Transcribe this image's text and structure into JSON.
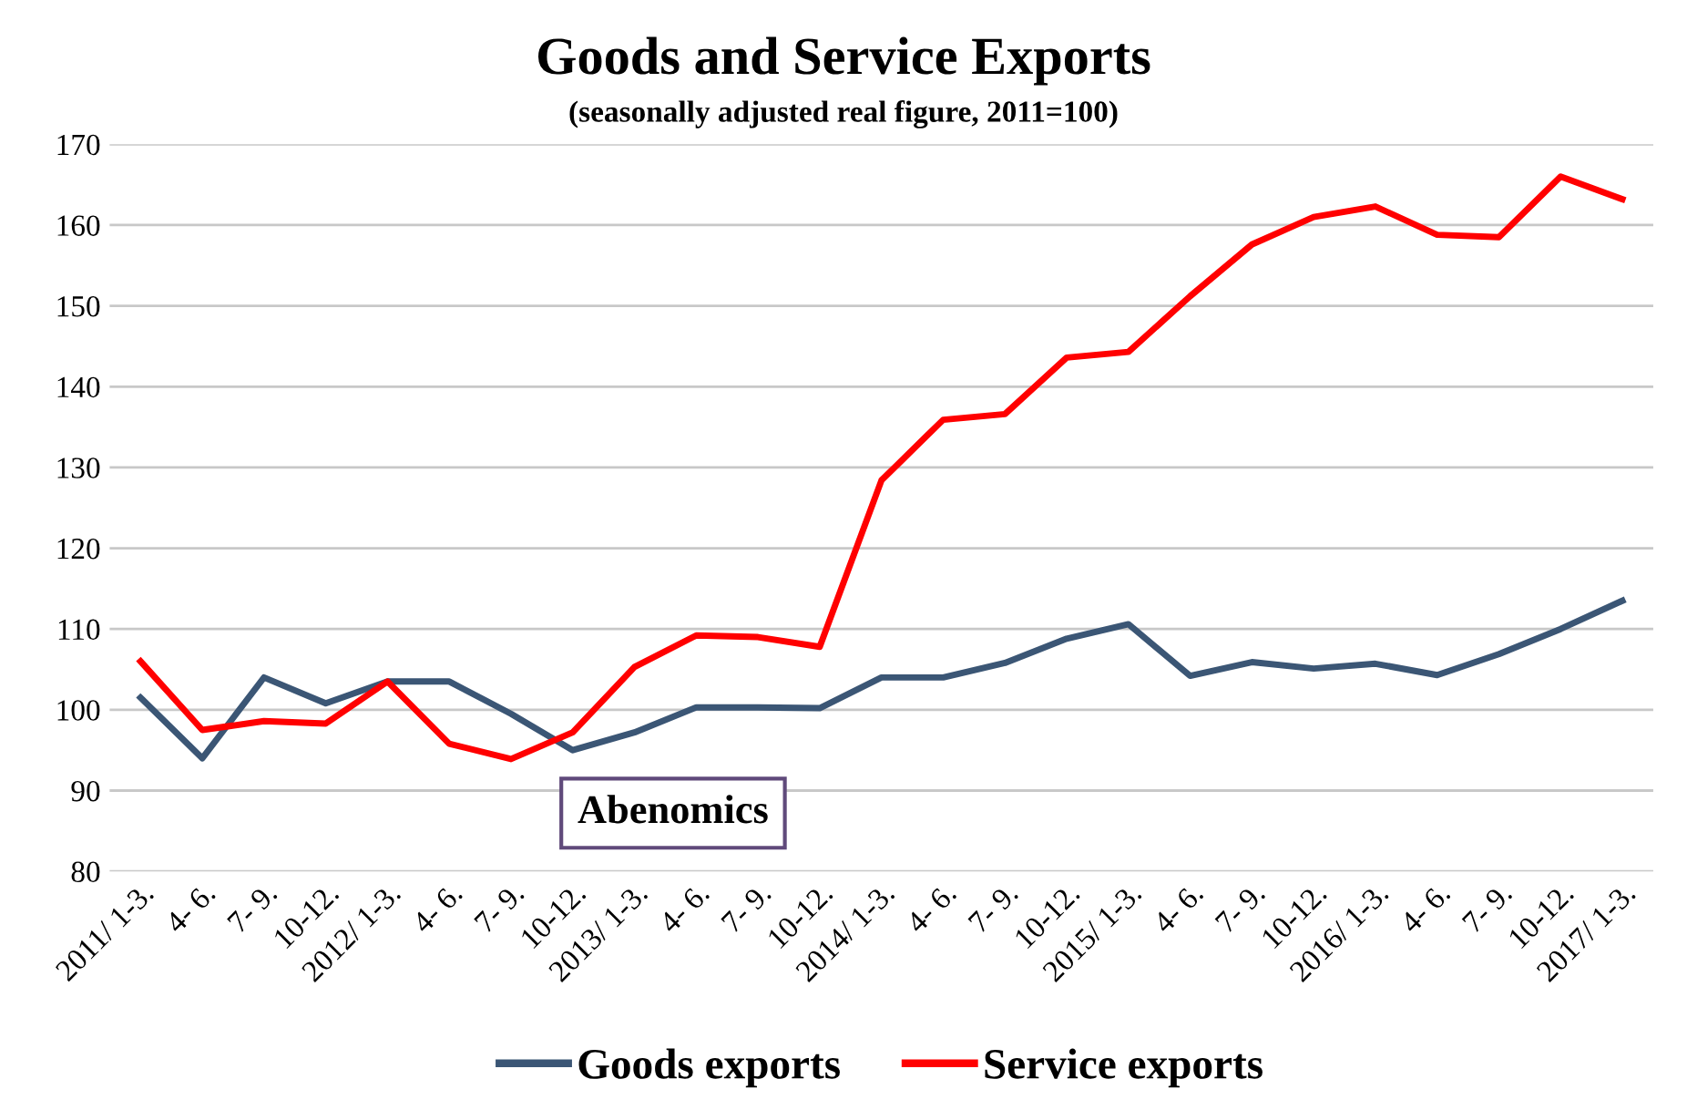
{
  "chart_data": {
    "type": "line",
    "title": "Goods and Service Exports",
    "subtitle": "(seasonally adjusted real figure, 2011=100)",
    "categories": [
      "2011/ 1-3.",
      "4- 6.",
      "7- 9.",
      "10-12.",
      "2012/ 1-3.",
      "4- 6.",
      "7- 9.",
      "10-12.",
      "2013/ 1-3.",
      "4- 6.",
      "7- 9.",
      "10-12.",
      "2014/ 1-3.",
      "4- 6.",
      "7- 9.",
      "10-12.",
      "2015/ 1-3.",
      "4- 6.",
      "7- 9.",
      "10-12.",
      "2016/ 1-3.",
      "4- 6.",
      "7- 9.",
      "10-12.",
      "2017/ 1-3."
    ],
    "series": [
      {
        "name": "Goods exports",
        "color": "#3b5675",
        "values": [
          101.5,
          94,
          104,
          100.8,
          103.5,
          103.5,
          99.5,
          95,
          97.2,
          100.3,
          100.3,
          100.2,
          104,
          104,
          105.8,
          108.8,
          110.6,
          104.2,
          105.9,
          105.1,
          105.7,
          104.3,
          106.9,
          110,
          113.5
        ]
      },
      {
        "name": "Service exports",
        "color": "#ff0000",
        "values": [
          106,
          97.5,
          98.6,
          98.3,
          103.5,
          95.8,
          93.9,
          97.2,
          105.3,
          109.2,
          109,
          107.8,
          128.4,
          135.9,
          136.6,
          143.6,
          144.3,
          151.2,
          157.6,
          161,
          162.3,
          158.8,
          158.5,
          166,
          163.2
        ]
      }
    ],
    "ylim": [
      80,
      170
    ],
    "yticks": [
      80,
      90,
      100,
      110,
      120,
      130,
      140,
      150,
      160,
      170
    ],
    "grid": "y",
    "legend": "bottom",
    "marker": "none",
    "line_style": "solid",
    "annotations": [
      "Abenomics"
    ]
  }
}
